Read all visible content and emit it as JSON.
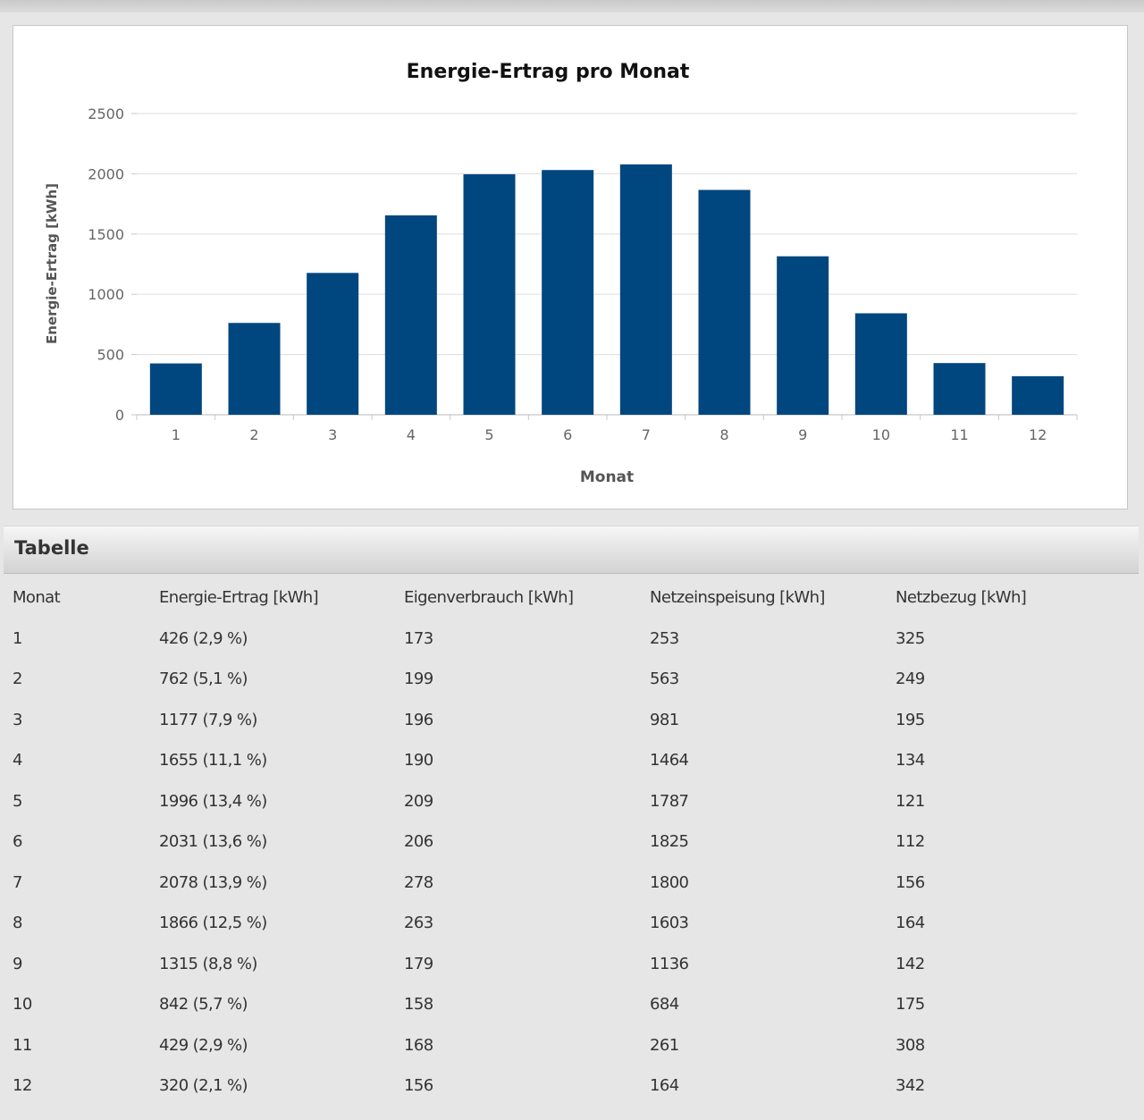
{
  "chart_data": {
    "type": "bar",
    "title": "Energie-Ertrag pro Monat",
    "xlabel": "Monat",
    "ylabel": "Energie-Ertrag [kWh]",
    "categories": [
      "1",
      "2",
      "3",
      "4",
      "5",
      "6",
      "7",
      "8",
      "9",
      "10",
      "11",
      "12"
    ],
    "values": [
      426,
      762,
      1177,
      1655,
      1996,
      2031,
      2078,
      1866,
      1315,
      842,
      429,
      320
    ],
    "ylim": [
      0,
      2500
    ],
    "yticks": [
      0,
      500,
      1000,
      1500,
      2000,
      2500
    ],
    "grid": true,
    "legend": "none",
    "bar_color": "#00467f"
  },
  "table": {
    "title": "Tabelle",
    "columns": [
      "Monat",
      "Energie-Ertrag [kWh]",
      "Eigenverbrauch [kWh]",
      "Netzeinspeisung [kWh]",
      "Netzbezug [kWh]"
    ],
    "rows": [
      [
        "1",
        "426 (2,9 %)",
        "173",
        "253",
        "325"
      ],
      [
        "2",
        "762 (5,1 %)",
        "199",
        "563",
        "249"
      ],
      [
        "3",
        "1177 (7,9 %)",
        "196",
        "981",
        "195"
      ],
      [
        "4",
        "1655 (11,1 %)",
        "190",
        "1464",
        "134"
      ],
      [
        "5",
        "1996 (13,4 %)",
        "209",
        "1787",
        "121"
      ],
      [
        "6",
        "2031 (13,6 %)",
        "206",
        "1825",
        "112"
      ],
      [
        "7",
        "2078 (13,9 %)",
        "278",
        "1800",
        "156"
      ],
      [
        "8",
        "1866 (12,5 %)",
        "263",
        "1603",
        "164"
      ],
      [
        "9",
        "1315 (8,8 %)",
        "179",
        "1136",
        "142"
      ],
      [
        "10",
        "842 (5,7 %)",
        "158",
        "684",
        "175"
      ],
      [
        "11",
        "429 (2,9 %)",
        "168",
        "261",
        "308"
      ],
      [
        "12",
        "320 (2,1 %)",
        "156",
        "164",
        "342"
      ]
    ]
  }
}
